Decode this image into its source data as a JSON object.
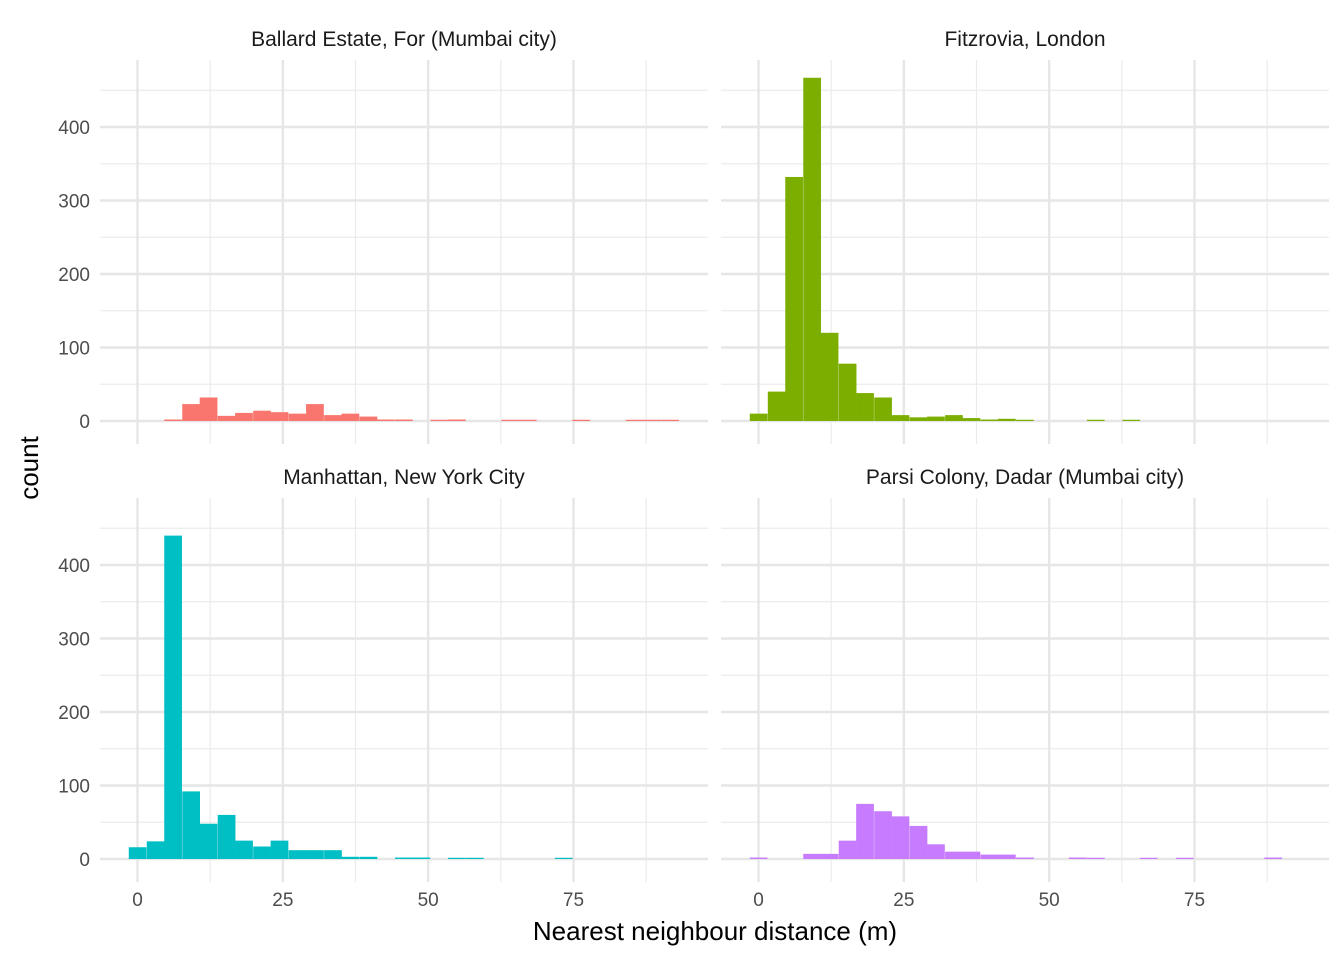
{
  "chart_data": {
    "type": "bar",
    "subtype": "faceted-histogram",
    "xlabel": "Nearest neighbour distance (m)",
    "ylabel": "count",
    "x_ticks": [
      0,
      25,
      50,
      75
    ],
    "y_ticks": [
      0,
      100,
      200,
      300,
      400
    ],
    "xlim": [
      -6,
      98
    ],
    "ylim": [
      -15,
      490
    ],
    "grid": true,
    "legend": "none",
    "bin_width": 3.05,
    "facets": [
      {
        "name": "Ballard Estate, For (Mumbai city)",
        "color": "#F8766D",
        "bin_starts": [
          4.6,
          7.7,
          10.7,
          13.8,
          16.8,
          19.9,
          22.9,
          26.0,
          29.0,
          32.1,
          35.1,
          38.2,
          41.2,
          44.3,
          50.4,
          53.4,
          62.6,
          65.6,
          74.8,
          84.0,
          87.0,
          90.1
        ],
        "counts": [
          2,
          23,
          32,
          7,
          11,
          14,
          12,
          10,
          23,
          8,
          10,
          6,
          2,
          2,
          1,
          2,
          1,
          1,
          1,
          1,
          1,
          1
        ]
      },
      {
        "name": "Fitzrovia, London",
        "color": "#7CAE00",
        "bin_starts": [
          -1.5,
          1.6,
          4.6,
          7.7,
          10.7,
          13.8,
          16.8,
          19.9,
          22.9,
          26.0,
          29.0,
          32.1,
          35.1,
          38.2,
          41.2,
          44.3,
          56.5,
          62.6
        ],
        "counts": [
          10,
          40,
          332,
          467,
          120,
          78,
          38,
          32,
          8,
          5,
          6,
          8,
          4,
          2,
          3,
          1,
          1,
          1
        ]
      },
      {
        "name": "Manhattan, New York City",
        "color": "#00BFC4",
        "bin_starts": [
          -1.5,
          1.6,
          4.6,
          7.7,
          10.7,
          13.8,
          16.8,
          19.9,
          22.9,
          26.0,
          29.0,
          32.1,
          35.1,
          38.2,
          44.3,
          47.3,
          53.4,
          56.5,
          71.8
        ],
        "counts": [
          16,
          24,
          440,
          92,
          48,
          60,
          25,
          17,
          25,
          12,
          12,
          12,
          3,
          3,
          2,
          2,
          1,
          1,
          1
        ]
      },
      {
        "name": "Parsi Colony, Dadar (Mumbai city)",
        "color": "#C77CFF",
        "bin_starts": [
          -1.5,
          7.7,
          10.7,
          13.8,
          16.8,
          19.9,
          22.9,
          26.0,
          29.0,
          32.1,
          35.1,
          38.2,
          41.2,
          44.3,
          53.4,
          56.5,
          65.6,
          71.8,
          87.0
        ],
        "counts": [
          2,
          7,
          7,
          25,
          75,
          65,
          58,
          45,
          20,
          10,
          10,
          6,
          6,
          2,
          2,
          1,
          1,
          1,
          2
        ]
      }
    ]
  }
}
